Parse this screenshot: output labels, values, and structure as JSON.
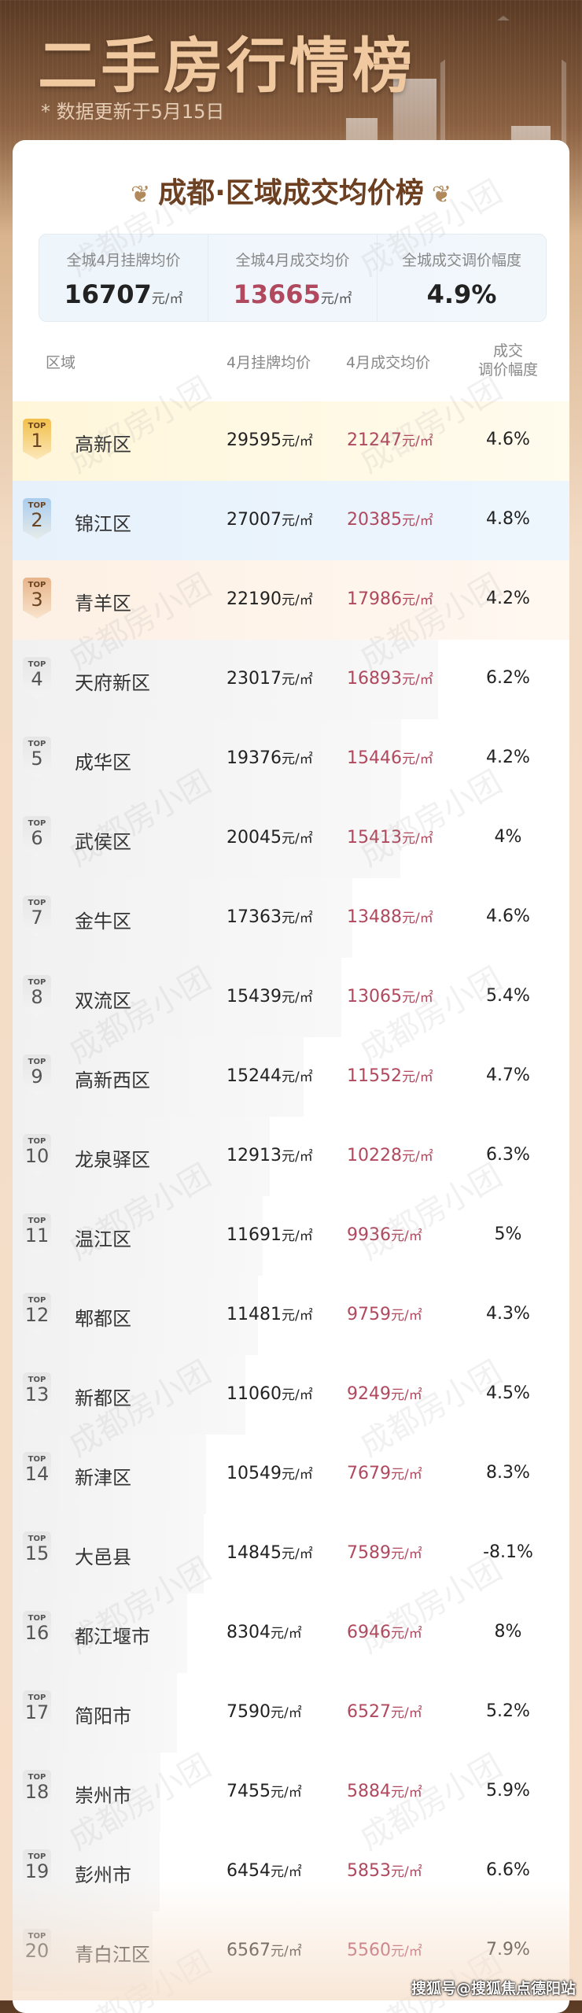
{
  "header": {
    "title": "二手房行情榜",
    "update_note": "* 数据更新于5月15日"
  },
  "card": {
    "title": "成都·区域成交均价榜"
  },
  "summary": [
    {
      "label": "全城4月挂牌均价",
      "value": "16707",
      "unit": "元/㎡"
    },
    {
      "label": "全城4月成交均价",
      "value": "13665",
      "unit": "元/㎡"
    },
    {
      "label": "全城成交调价幅度",
      "value": "4.9%",
      "unit": ""
    }
  ],
  "columns": {
    "region": "区域",
    "listing": "4月挂牌均价",
    "deal": "4月成交均价",
    "change": "成交\n调价幅度"
  },
  "unit": "元/㎡",
  "badge_prefix": "TOP",
  "badge_colors": {
    "1": "#f2c04a",
    "2": "#a9cdef",
    "3": "#e8b48a"
  },
  "rows": [
    {
      "rank": "1",
      "region": "高新区",
      "listing": "29595",
      "deal": "21247",
      "change": "4.6%"
    },
    {
      "rank": "2",
      "region": "锦江区",
      "listing": "27007",
      "deal": "20385",
      "change": "4.8%"
    },
    {
      "rank": "3",
      "region": "青羊区",
      "listing": "22190",
      "deal": "17986",
      "change": "4.2%"
    },
    {
      "rank": "4",
      "region": "天府新区",
      "listing": "23017",
      "deal": "16893",
      "change": "6.2%"
    },
    {
      "rank": "5",
      "region": "成华区",
      "listing": "19376",
      "deal": "15446",
      "change": "4.2%"
    },
    {
      "rank": "6",
      "region": "武侯区",
      "listing": "20045",
      "deal": "15413",
      "change": "4%"
    },
    {
      "rank": "7",
      "region": "金牛区",
      "listing": "17363",
      "deal": "13488",
      "change": "4.6%"
    },
    {
      "rank": "8",
      "region": "双流区",
      "listing": "15439",
      "deal": "13065",
      "change": "5.4%"
    },
    {
      "rank": "9",
      "region": "高新西区",
      "listing": "15244",
      "deal": "11552",
      "change": "4.7%"
    },
    {
      "rank": "10",
      "region": "龙泉驿区",
      "listing": "12913",
      "deal": "10228",
      "change": "6.3%"
    },
    {
      "rank": "11",
      "region": "温江区",
      "listing": "11691",
      "deal": "9936",
      "change": "5%"
    },
    {
      "rank": "12",
      "region": "郫都区",
      "listing": "11481",
      "deal": "9759",
      "change": "4.3%"
    },
    {
      "rank": "13",
      "region": "新都区",
      "listing": "11060",
      "deal": "9249",
      "change": "4.5%"
    },
    {
      "rank": "14",
      "region": "新津区",
      "listing": "10549",
      "deal": "7679",
      "change": "8.3%"
    },
    {
      "rank": "15",
      "region": "大邑县",
      "listing": "14845",
      "deal": "7589",
      "change": "-8.1%"
    },
    {
      "rank": "16",
      "region": "都江堰市",
      "listing": "8304",
      "deal": "6946",
      "change": "8%"
    },
    {
      "rank": "17",
      "region": "简阳市",
      "listing": "7590",
      "deal": "6527",
      "change": "5.2%"
    },
    {
      "rank": "18",
      "region": "崇州市",
      "listing": "7455",
      "deal": "5884",
      "change": "5.9%"
    },
    {
      "rank": "19",
      "region": "彭州市",
      "listing": "6454",
      "deal": "5853",
      "change": "6.6%"
    },
    {
      "rank": "20",
      "region": "青白江区",
      "listing": "6567",
      "deal": "5560",
      "change": "7.9%"
    }
  ],
  "watermark": "成都房小团",
  "credit": "搜狐号@搜狐焦点德阳站"
}
